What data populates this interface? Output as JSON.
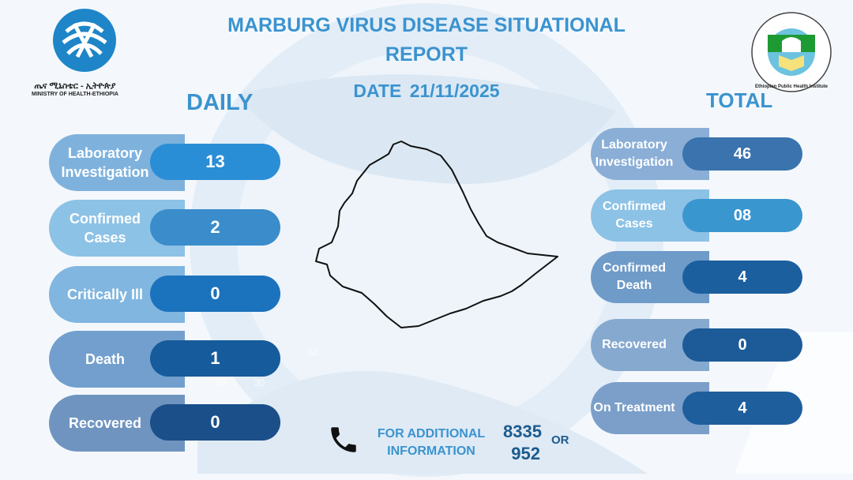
{
  "header": {
    "title": "MARBURG VIRUS DISEASE SITUATIONAL REPORT",
    "date": "DATE 21/11/2025"
  },
  "logos": {
    "moh_amharic": "ጤና ሚኒስቴር - ኢትዮጵያ",
    "moh_english": "MINISTRY OF HEALTH-ETHIOPIA",
    "ephi_text": "Ethiopian Public Health Institute"
  },
  "daily": {
    "heading": "DAILY",
    "items": [
      {
        "label": "Laboratory Investigation",
        "value": "13",
        "label_color": "#7eb2dd",
        "value_color": "#2a8ed6"
      },
      {
        "label": "Confirmed Cases",
        "value": "2",
        "label_color": "#8cc2e6",
        "value_color": "#3a8ccb"
      },
      {
        "label": "Critically Ill",
        "value": "0",
        "label_color": "#80b6e0",
        "value_color": "#1b72bd"
      },
      {
        "label": "Death",
        "value": "1",
        "label_color": "#729fcd",
        "value_color": "#165b9b"
      },
      {
        "label": "Recovered",
        "value": "0",
        "label_color": "#7094c0",
        "value_color": "#1a4f8a"
      }
    ]
  },
  "total": {
    "heading": "TOTAL",
    "items": [
      {
        "label": "Laboratory Investigation",
        "value": "46",
        "label_color": "#8aaed6",
        "value_color": "#3a73ad"
      },
      {
        "label": "Confirmed Cases",
        "value": "08",
        "label_color": "#8cc2e6",
        "value_color": "#3a96cf"
      },
      {
        "label": "Confirmed Death",
        "value": "4",
        "label_color": "#6f9bc9",
        "value_color": "#1b5f9f"
      },
      {
        "label": "Recovered",
        "value": "0",
        "label_color": "#86a9d0",
        "value_color": "#1d5b98"
      },
      {
        "label": "On Treatment",
        "value": "4",
        "label_color": "#7b9fc9",
        "value_color": "#1e5e9c"
      }
    ]
  },
  "contact": {
    "line1": "FOR ADDITIONAL",
    "line2": "INFORMATION",
    "number1": "8335",
    "number2": "952",
    "or": "OR"
  },
  "stray_labels": [
    "60",
    "30",
    "30"
  ]
}
